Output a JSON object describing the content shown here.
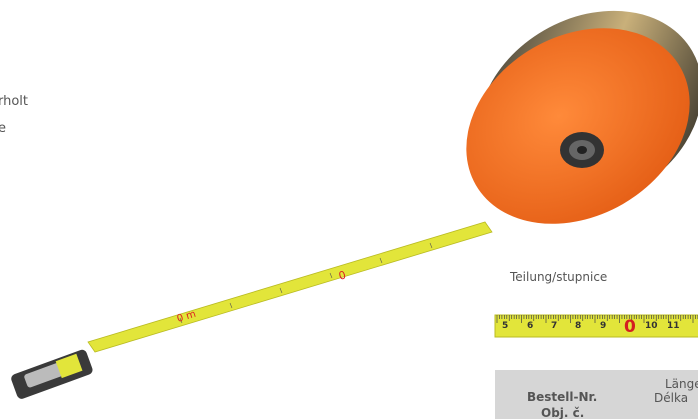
{
  "intro": {
    "lines": [
      "rholt",
      "e"
    ]
  },
  "scale": {
    "caption": "Teilung/stupnice",
    "labels": [
      "5",
      "6",
      "7",
      "8",
      "9",
      "0",
      "10",
      "11"
    ]
  },
  "table": {
    "headers": [
      [
        "Bestell-Nr.",
        "Obj. č."
      ],
      [
        "Länge",
        "Délka"
      ]
    ]
  }
}
